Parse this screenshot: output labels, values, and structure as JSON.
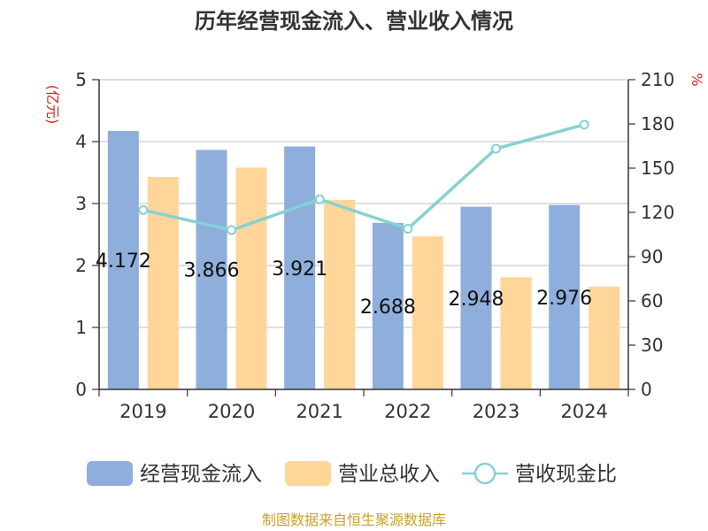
{
  "chart_data": {
    "type": "bar",
    "title": "历年经营现金流入、营业收入情况",
    "left_unit": "(亿元)",
    "right_unit": "%",
    "categories": [
      "2019",
      "2020",
      "2021",
      "2022",
      "2023",
      "2024"
    ],
    "series": [
      {
        "name": "经营现金流入",
        "type": "bar",
        "axis": "left",
        "color": "#8eaedb",
        "values": [
          4.172,
          3.866,
          3.921,
          2.688,
          2.948,
          2.976
        ],
        "data_labels": [
          "4.172",
          "3.866",
          "3.921",
          "2.688",
          "2.948",
          "2.976"
        ]
      },
      {
        "name": "营业总收入",
        "type": "bar",
        "axis": "left",
        "color": "#ffd699",
        "values": [
          3.43,
          3.58,
          3.06,
          2.47,
          1.81,
          1.66
        ]
      },
      {
        "name": "营收现金比",
        "type": "line",
        "axis": "right",
        "color": "#86d1d4",
        "values": [
          121.6,
          108.0,
          128.9,
          108.9,
          163.2,
          179.5
        ]
      }
    ],
    "left_axis": {
      "min": 0,
      "max": 5,
      "ticks": [
        "0",
        "1",
        "2",
        "3",
        "4",
        "5"
      ]
    },
    "right_axis": {
      "min": 0,
      "max": 210,
      "ticks": [
        "0",
        "30",
        "60",
        "90",
        "120",
        "150",
        "180",
        "210"
      ]
    },
    "grid": true,
    "legend_position": "bottom",
    "unit_color": "#e02020"
  },
  "source_text": "制图数据来自恒生聚源数据库",
  "source_color": "#c9a227"
}
